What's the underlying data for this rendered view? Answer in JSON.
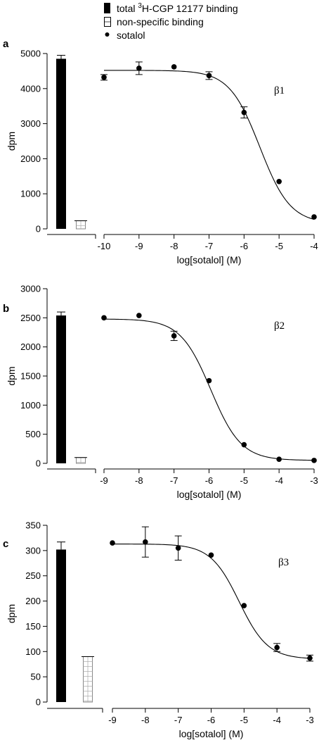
{
  "legend": {
    "total_prefix": "total ",
    "total_sup": "3",
    "total_suffix": "H-CGP 12177 binding",
    "nonspecific": "non-specific binding",
    "sotalol": "sotalol"
  },
  "chart_data": [
    {
      "type": "scatter",
      "panel": "a",
      "title": "β1",
      "xlabel": "log[sotalol] (M)",
      "ylabel": "dpm",
      "xlim": [
        -10,
        -4
      ],
      "ylim": [
        0,
        5000
      ],
      "xticks": [
        -10,
        -9,
        -8,
        -7,
        -6,
        -5,
        -4
      ],
      "yticks": [
        0,
        1000,
        2000,
        3000,
        4000,
        5000
      ],
      "bars": [
        {
          "name": "total 3H-CGP 12177 binding",
          "value": 4850,
          "error": 100
        },
        {
          "name": "non-specific binding",
          "value": 230,
          "error": 0
        }
      ],
      "points": [
        {
          "x": -10,
          "y": 4320,
          "err": 80
        },
        {
          "x": -9,
          "y": 4580,
          "err": 180
        },
        {
          "x": -8,
          "y": 4620,
          "err": 0
        },
        {
          "x": -7,
          "y": 4370,
          "err": 110
        },
        {
          "x": -6,
          "y": 3320,
          "err": 160
        },
        {
          "x": -5,
          "y": 1350,
          "err": 0
        },
        {
          "x": -4,
          "y": 340,
          "err": 0
        }
      ],
      "fit": {
        "top": 4520,
        "bottom": 150,
        "logEC50": -5.55,
        "hill": 1.0
      }
    },
    {
      "type": "scatter",
      "panel": "b",
      "title": "β2",
      "xlabel": "log[sotalol] (M)",
      "ylabel": "dpm",
      "xlim": [
        -9,
        -3
      ],
      "ylim": [
        0,
        3000
      ],
      "xticks": [
        -9,
        -8,
        -7,
        -6,
        -5,
        -4,
        -3
      ],
      "yticks": [
        0,
        500,
        1000,
        1500,
        2000,
        2500,
        3000
      ],
      "bars": [
        {
          "name": "total 3H-CGP 12177 binding",
          "value": 2540,
          "error": 60
        },
        {
          "name": "non-specific binding",
          "value": 100,
          "error": 0
        }
      ],
      "points": [
        {
          "x": -9,
          "y": 2500,
          "err": 0
        },
        {
          "x": -8,
          "y": 2540,
          "err": 0
        },
        {
          "x": -7,
          "y": 2190,
          "err": 80
        },
        {
          "x": -6,
          "y": 1420,
          "err": 0
        },
        {
          "x": -5,
          "y": 320,
          "err": 0
        },
        {
          "x": -4,
          "y": 70,
          "err": 0
        },
        {
          "x": -3,
          "y": 50,
          "err": 0
        }
      ],
      "fit": {
        "top": 2480,
        "bottom": 50,
        "logEC50": -5.95,
        "hill": 1.0
      }
    },
    {
      "type": "scatter",
      "panel": "c",
      "title": "β3",
      "xlabel": "log[sotalol] (M)",
      "ylabel": "dpm",
      "xlim": [
        -9,
        -3
      ],
      "ylim": [
        0,
        350
      ],
      "xticks": [
        -9,
        -8,
        -7,
        -6,
        -5,
        -4,
        -3
      ],
      "yticks": [
        0,
        50,
        100,
        150,
        200,
        250,
        300,
        350
      ],
      "bars": [
        {
          "name": "total 3H-CGP 12177 binding",
          "value": 302,
          "error": 15
        },
        {
          "name": "non-specific binding",
          "value": 90,
          "error": 0
        }
      ],
      "points": [
        {
          "x": -9,
          "y": 315,
          "err": 0
        },
        {
          "x": -8,
          "y": 317,
          "err": 30
        },
        {
          "x": -7,
          "y": 305,
          "err": 24
        },
        {
          "x": -6,
          "y": 291,
          "err": 0
        },
        {
          "x": -5,
          "y": 191,
          "err": 0
        },
        {
          "x": -4,
          "y": 108,
          "err": 8
        },
        {
          "x": -3,
          "y": 87,
          "err": 6
        }
      ],
      "fit": {
        "top": 313,
        "bottom": 85,
        "logEC50": -5.15,
        "hill": 1.0
      }
    }
  ]
}
